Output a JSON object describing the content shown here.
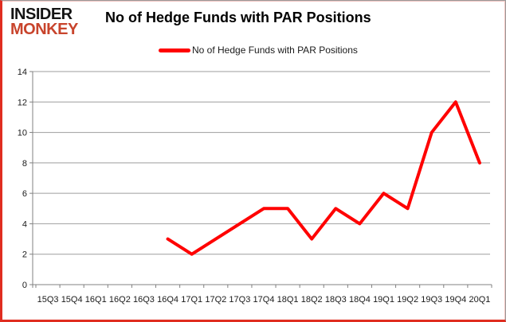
{
  "logo": {
    "line1": "INSIDER",
    "line2": "MONKEY",
    "monkey_color": "#c8442c"
  },
  "header": {
    "title": "No of Hedge Funds with PAR Positions"
  },
  "legend": {
    "label": "No of Hedge Funds with PAR Positions",
    "line_color": "#ff0000",
    "position": "top"
  },
  "chart_data": {
    "type": "line",
    "title": "No of Hedge Funds with PAR Positions",
    "categories": [
      "15Q3",
      "15Q4",
      "16Q1",
      "16Q2",
      "16Q3",
      "16Q4",
      "17Q1",
      "17Q2",
      "17Q3",
      "17Q4",
      "18Q1",
      "18Q2",
      "18Q3",
      "18Q4",
      "19Q1",
      "19Q2",
      "19Q3",
      "19Q4",
      "20Q1"
    ],
    "series": [
      {
        "name": "No of Hedge Funds with PAR Positions",
        "color": "#ff0000",
        "values": [
          null,
          null,
          null,
          null,
          null,
          3,
          2,
          3,
          4,
          5,
          5,
          3,
          5,
          4,
          6,
          5,
          10,
          12,
          8
        ]
      }
    ],
    "xlabel": "",
    "ylabel": "",
    "ylim": [
      0,
      14
    ],
    "yticks": [
      0,
      2,
      4,
      6,
      8,
      10,
      12,
      14
    ],
    "ytick_step": 2,
    "grid": true,
    "grid_color": "#9e9e9e",
    "axis_color": "#808080",
    "legend_position": "top"
  }
}
